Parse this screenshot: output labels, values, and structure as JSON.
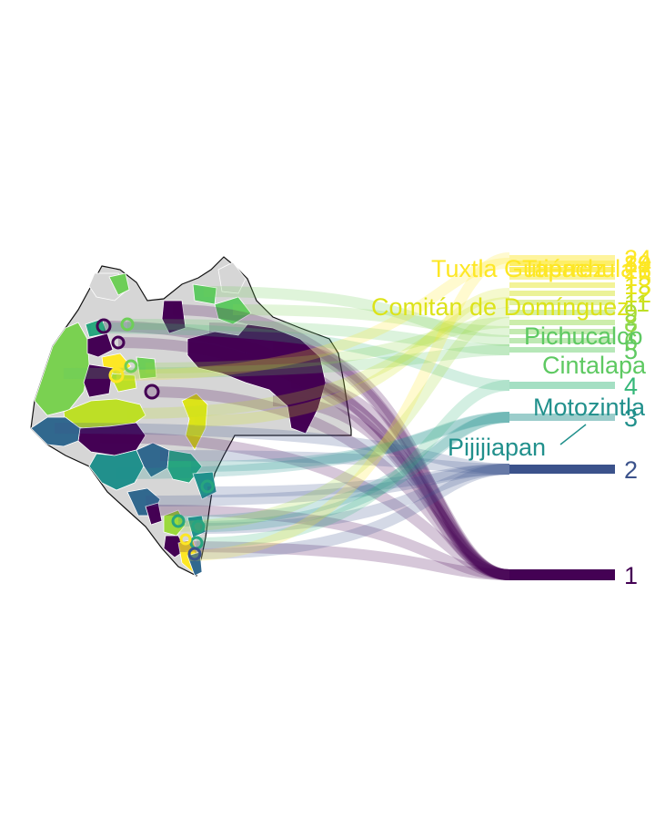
{
  "chart_data": {
    "type": "sankey-map",
    "description_source": "Municipalities of Chiapas ranked, flowing into numbered categories",
    "colors": {
      "c1": "#440154",
      "c2": "#3b528b",
      "c3": "#21908c",
      "c4": "#27a57f",
      "c5": "#3fbc73",
      "c6": "#5ec962",
      "c7": "#7ad151",
      "c8": "#9bd93c",
      "c9": "#bddf26",
      "c10": "#dce319",
      "c11": "#fde725",
      "c12": "#fde725",
      "c13": "#fde725",
      "c14": "#fde725",
      "c15": "#fde725",
      "c16": "#fde725"
    },
    "categories": [
      {
        "label": "1",
        "color": "#440154"
      },
      {
        "label": "2",
        "color": "#3b528b"
      },
      {
        "label": "3",
        "color": "#21908c"
      },
      {
        "label": "4",
        "color": "#35b779"
      },
      {
        "label": "5",
        "color": "#5ec962"
      },
      {
        "label": "6",
        "color": "#6ece58"
      },
      {
        "label": "7",
        "color": "#7ad151"
      },
      {
        "label": "8",
        "color": "#8fd744"
      },
      {
        "label": "9",
        "color": "#a5db36"
      },
      {
        "label": "11",
        "color": "#bddf26"
      },
      {
        "label": "12",
        "color": "#d2e21b"
      },
      {
        "label": "13",
        "color": "#e5e419"
      },
      {
        "label": "15",
        "color": "#f1e51d"
      },
      {
        "label": "16",
        "color": "#f8e621"
      },
      {
        "label": "19",
        "color": "#fde725"
      },
      {
        "label": "21",
        "color": "#fde725"
      },
      {
        "label": "24",
        "color": "#fde725"
      },
      {
        "label": "84",
        "color": "#fde725"
      }
    ],
    "municipality_labels": [
      {
        "name": "Tuxtla Gutiérrez",
        "color": "#fde725"
      },
      {
        "name": "Tapachula",
        "color": "#fde725"
      },
      {
        "name": "Comitán de Domínguez",
        "color": "#dce319"
      },
      {
        "name": "Pichucalco",
        "color": "#5ec962"
      },
      {
        "name": "Cintalapa",
        "color": "#5ec962"
      },
      {
        "name": "Motozintla",
        "color": "#21908c"
      },
      {
        "name": "Pijijiapan",
        "color": "#21908c"
      }
    ]
  }
}
